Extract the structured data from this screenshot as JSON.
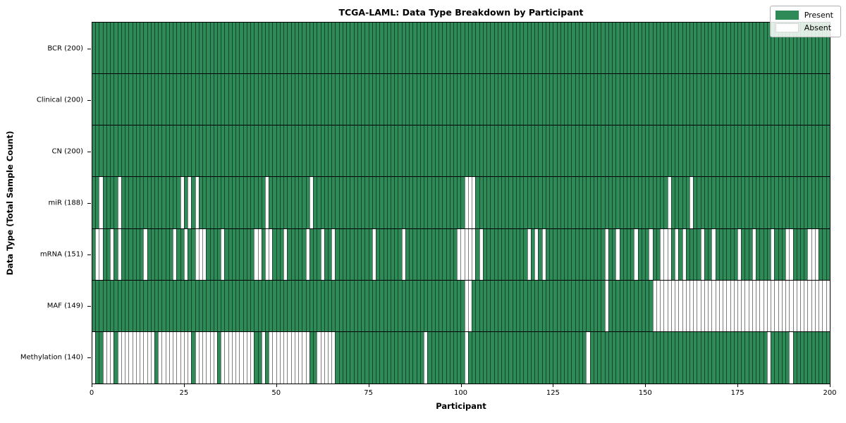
{
  "figure": {
    "title": "TCGA-LAML: Data Type Breakdown by Participant",
    "xlabel": "Participant",
    "ylabel": "Data Type (Total Sample Count)"
  },
  "legend": {
    "present_label": "Present",
    "absent_label": "Absent"
  },
  "colors": {
    "present": "#2e8b57",
    "absent": "#ffffff",
    "cell_edge": "rgba(0,0,0,0.5)",
    "row_separator": "#000000",
    "legend_border": "#b0b0b0"
  },
  "chart_data": {
    "type": "heatmap",
    "title": "TCGA-LAML: Data Type Breakdown by Participant",
    "xlabel": "Participant",
    "ylabel": "Data Type (Total Sample Count)",
    "n_participants": 200,
    "xlim": [
      0,
      200
    ],
    "xticks": [
      0,
      25,
      50,
      75,
      100,
      125,
      150,
      175,
      200
    ],
    "legend_position": "upper right",
    "value_legend": {
      "present": "Present",
      "absent": "Absent"
    },
    "rows": [
      {
        "label": "BCR (200)",
        "data_type": "BCR",
        "present_count": 200,
        "absent_participants": []
      },
      {
        "label": "Clinical (200)",
        "data_type": "Clinical",
        "present_count": 200,
        "absent_participants": []
      },
      {
        "label": "CN (200)",
        "data_type": "CN",
        "present_count": 200,
        "absent_participants": []
      },
      {
        "label": "miR (188)",
        "data_type": "miR",
        "present_count": 188,
        "absent_participants": [
          2,
          7,
          24,
          26,
          28,
          47,
          59,
          101,
          102,
          103,
          156,
          162
        ]
      },
      {
        "label": "mRNA (151)",
        "data_type": "mRNA",
        "present_count": 151,
        "absent_participants": [
          1,
          2,
          5,
          7,
          14,
          22,
          25,
          28,
          29,
          30,
          35,
          44,
          45,
          47,
          48,
          52,
          58,
          62,
          65,
          76,
          84,
          99,
          100,
          101,
          102,
          103,
          105,
          118,
          120,
          122,
          139,
          142,
          147,
          151,
          154,
          155,
          156,
          158,
          160,
          165,
          168,
          175,
          179,
          184,
          188,
          189,
          194,
          195,
          196
        ]
      },
      {
        "label": "MAF (149)",
        "data_type": "MAF",
        "present_count": 149,
        "absent_participants": [
          101,
          102,
          139,
          152,
          153,
          154,
          155,
          156,
          157,
          158,
          159,
          160,
          161,
          162,
          163,
          164,
          165,
          166,
          167,
          168,
          169,
          170,
          171,
          172,
          173,
          174,
          175,
          176,
          177,
          178,
          179,
          180,
          181,
          182,
          183,
          184,
          185,
          186,
          187,
          188,
          189,
          190,
          191,
          192,
          193,
          194,
          195,
          196,
          197,
          198,
          199
        ]
      },
      {
        "label": "Methylation (140)",
        "data_type": "Methylation",
        "present_count": 140,
        "absent_participants": [
          0,
          3,
          4,
          5,
          7,
          8,
          9,
          10,
          11,
          12,
          13,
          14,
          15,
          16,
          18,
          19,
          20,
          21,
          22,
          23,
          24,
          25,
          26,
          28,
          29,
          30,
          31,
          32,
          33,
          35,
          36,
          37,
          38,
          39,
          40,
          41,
          42,
          43,
          46,
          48,
          49,
          50,
          51,
          52,
          53,
          54,
          55,
          56,
          57,
          58,
          61,
          62,
          63,
          64,
          65,
          90,
          101,
          134,
          183,
          189
        ]
      }
    ]
  }
}
